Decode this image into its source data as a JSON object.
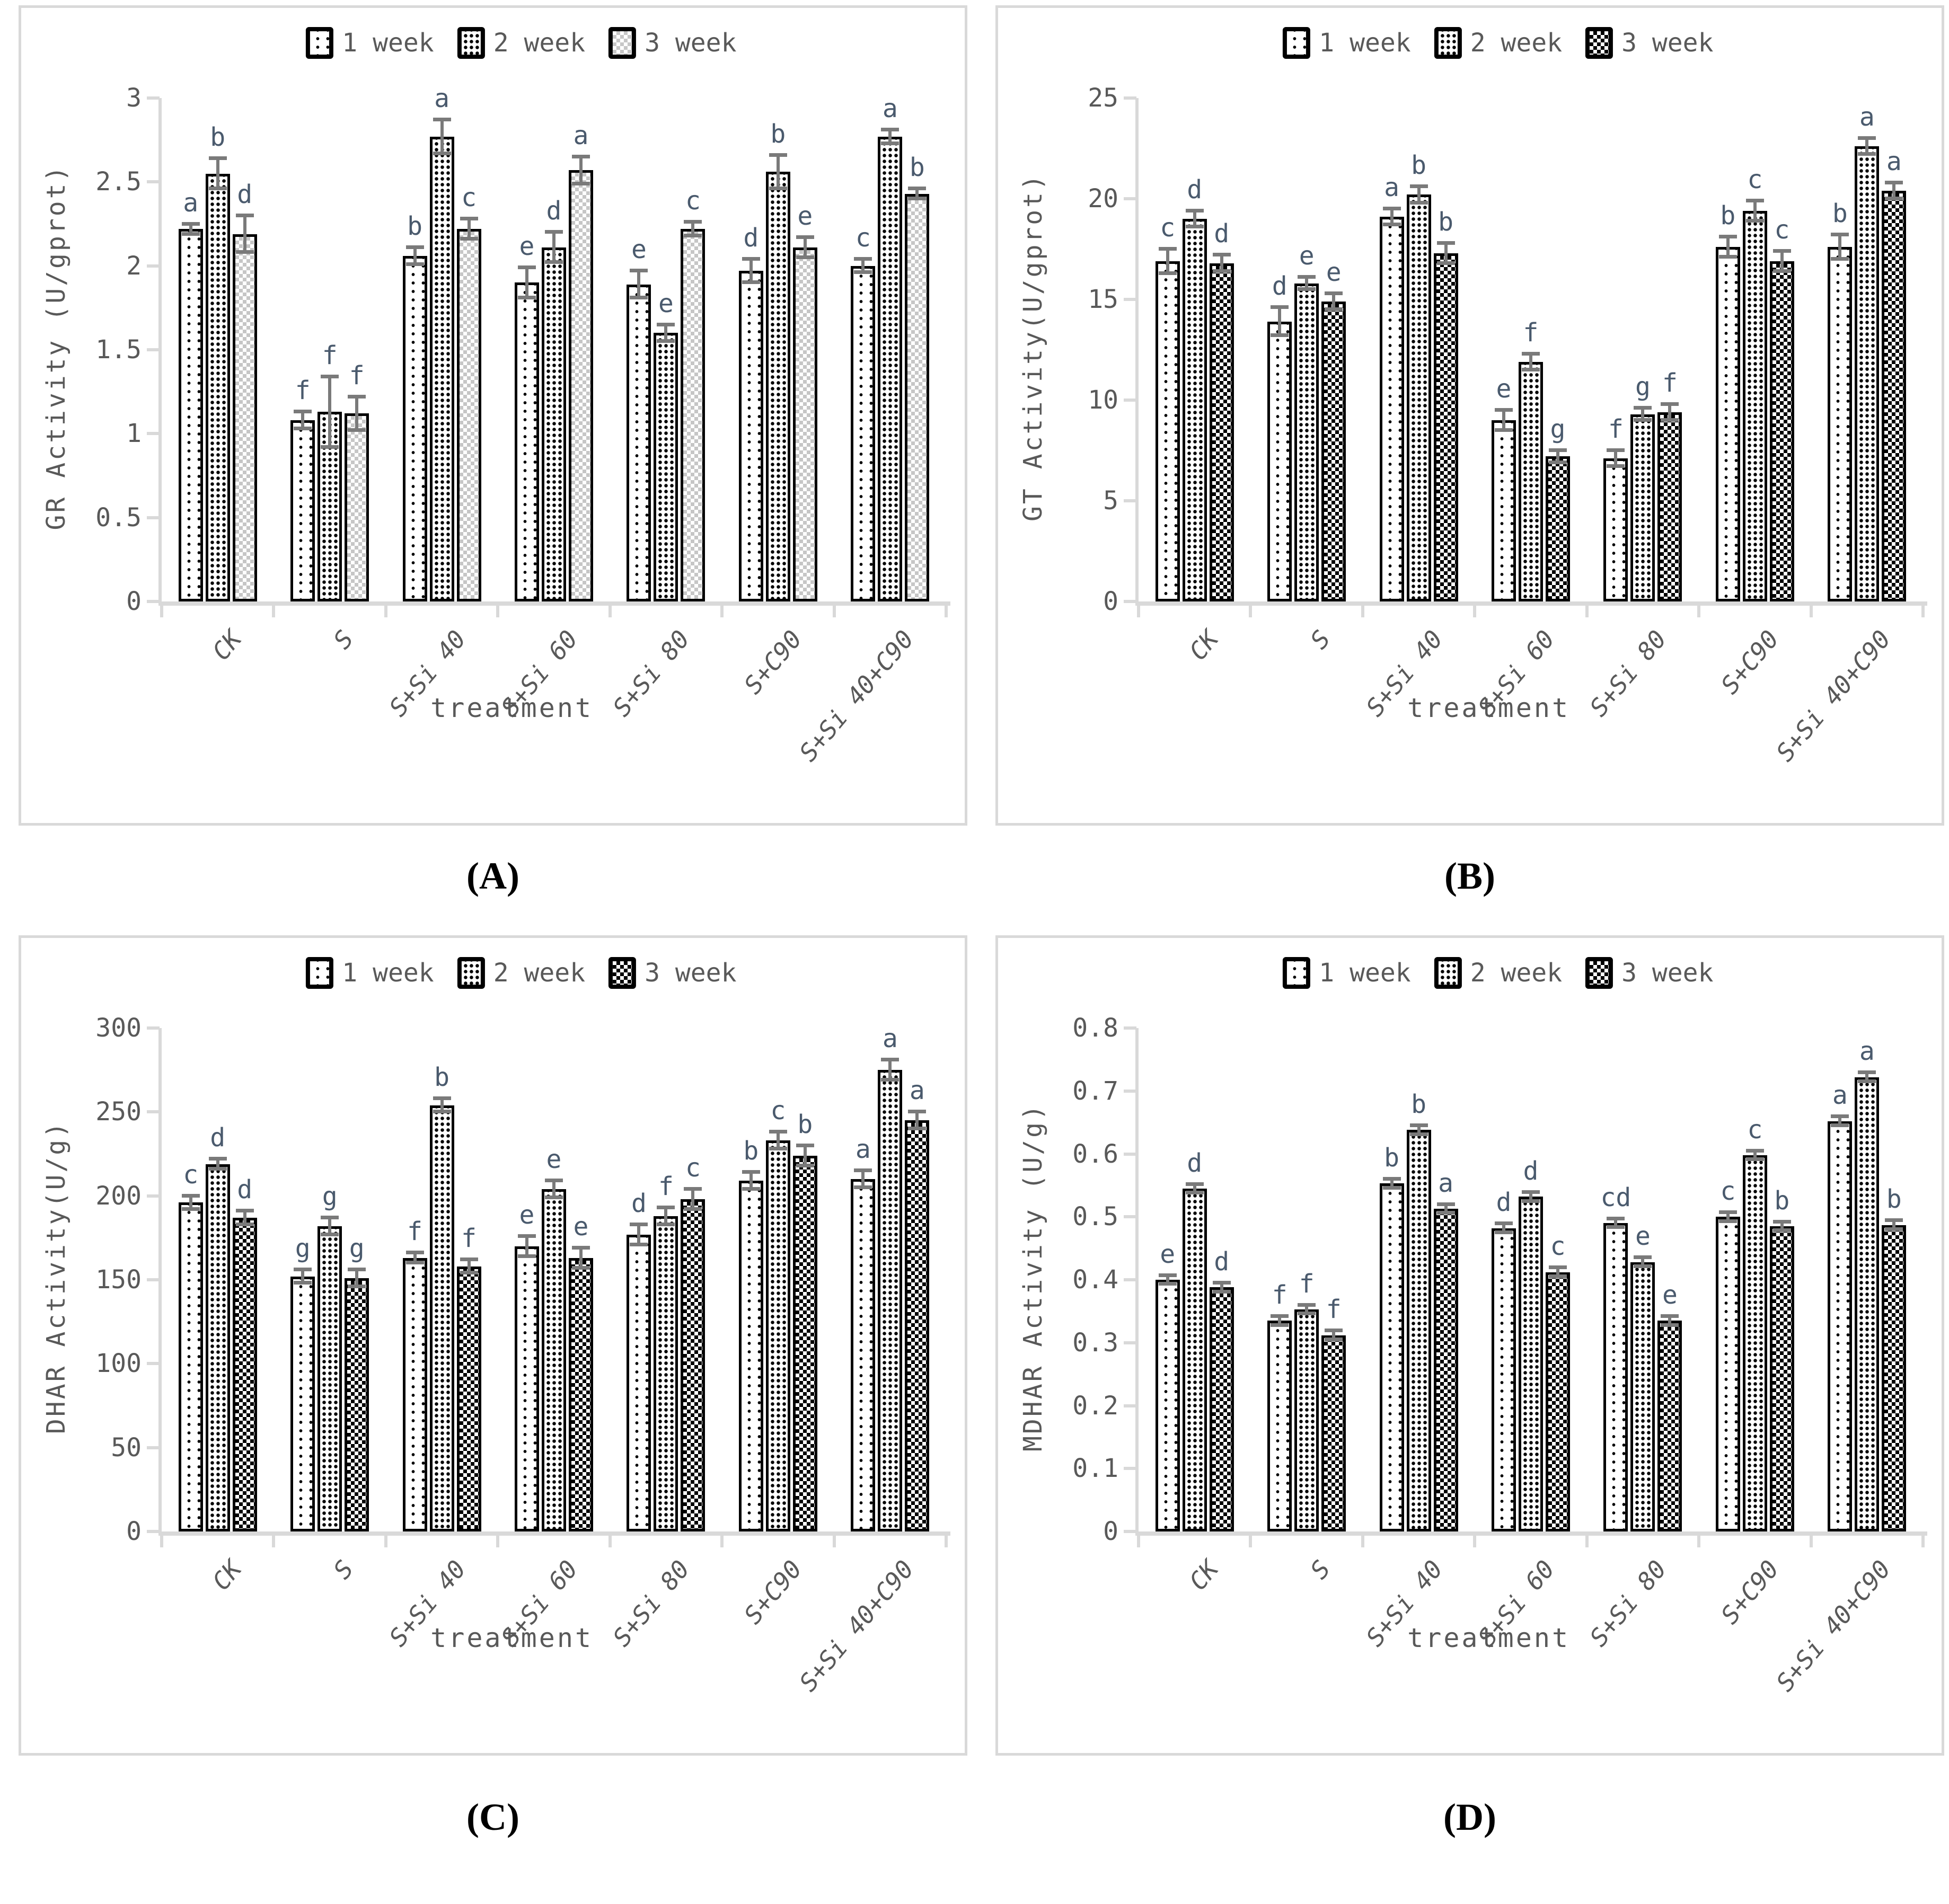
{
  "figure": {
    "x_title": "treatment",
    "categories": [
      "CK",
      "S",
      "S+Si 40",
      "S+Si 60",
      "S+Si 80",
      "S+C90",
      "S+Si 40+C90"
    ],
    "legend": {
      "position": "top",
      "items": [
        {
          "label": "1 week",
          "pattern": "dots-sparse"
        },
        {
          "label": "2 week",
          "pattern": "dots-dense"
        },
        {
          "label": "3 week",
          "pattern": "checker"
        }
      ]
    },
    "colors": {
      "axis_line": "#d9d9d9",
      "axis_text": "#595959",
      "sig_letter": "#4a5a6d",
      "error_bar": "#7a7a7a",
      "bar_border": "#000000",
      "checker_light": "#c6c6c6",
      "checker_dark": "#000000"
    }
  },
  "chart_data": [
    {
      "panel": "A",
      "panel_label": "(A)",
      "type": "bar",
      "ylabel": "GR Activity (U/gprot)",
      "xlabel": "treatment",
      "ylim": [
        0,
        3
      ],
      "ymax": 3,
      "grid": false,
      "ytick_values": [
        0,
        0.5,
        1,
        1.5,
        2,
        2.5,
        3
      ],
      "ytick_labels": [
        "0",
        "0.5",
        "1",
        "1.5",
        "2",
        "2.5",
        "3"
      ],
      "checker_style": "light",
      "categories": [
        "CK",
        "S",
        "S+Si 40",
        "S+Si 60",
        "S+Si 80",
        "S+C90",
        "S+Si 40+C90"
      ],
      "series": [
        {
          "name": "1 week",
          "values": [
            2.22,
            1.08,
            2.06,
            1.9,
            1.89,
            1.97,
            2.0
          ],
          "errors": [
            0.03,
            0.05,
            0.05,
            0.09,
            0.08,
            0.07,
            0.04
          ],
          "letters": [
            "a",
            "f",
            "b",
            "e",
            "e",
            "d",
            "c"
          ]
        },
        {
          "name": "2 week",
          "values": [
            2.55,
            1.13,
            2.77,
            2.11,
            1.6,
            2.56,
            2.77
          ],
          "errors": [
            0.09,
            0.21,
            0.1,
            0.09,
            0.05,
            0.1,
            0.04
          ],
          "letters": [
            "b",
            "f",
            "a",
            "d",
            "e",
            "b",
            "a"
          ]
        },
        {
          "name": "3 week",
          "values": [
            2.19,
            1.12,
            2.22,
            2.57,
            2.22,
            2.11,
            2.43
          ],
          "errors": [
            0.11,
            0.1,
            0.06,
            0.08,
            0.04,
            0.06,
            0.03
          ],
          "letters": [
            "d",
            "f",
            "c",
            "a",
            "c",
            "e",
            "b"
          ]
        }
      ]
    },
    {
      "panel": "B",
      "panel_label": "(B)",
      "type": "bar",
      "ylabel": "GT Activity(U/gprot)",
      "xlabel": "treatment",
      "ylim": [
        0,
        25
      ],
      "ymax": 25,
      "grid": false,
      "ytick_values": [
        0,
        5,
        10,
        15,
        20,
        25
      ],
      "ytick_labels": [
        "0",
        "5",
        "10",
        "15",
        "20",
        "25"
      ],
      "checker_style": "dark",
      "categories": [
        "CK",
        "S",
        "S+Si 40",
        "S+Si 60",
        "S+Si 80",
        "S+C90",
        "S+Si 40+C90"
      ],
      "series": [
        {
          "name": "1 week",
          "values": [
            16.9,
            13.9,
            19.1,
            9.0,
            7.1,
            17.6,
            17.6
          ],
          "errors": [
            0.6,
            0.7,
            0.4,
            0.5,
            0.4,
            0.5,
            0.6
          ],
          "letters": [
            "c",
            "d",
            "a",
            "e",
            "f",
            "b",
            "b"
          ]
        },
        {
          "name": "2 week",
          "values": [
            19.0,
            15.8,
            20.2,
            11.9,
            9.3,
            19.4,
            22.6
          ],
          "errors": [
            0.4,
            0.3,
            0.4,
            0.4,
            0.3,
            0.5,
            0.4
          ],
          "letters": [
            "d",
            "e",
            "b",
            "f",
            "g",
            "c",
            "a"
          ]
        },
        {
          "name": "3 week",
          "values": [
            16.8,
            14.9,
            17.3,
            7.2,
            9.4,
            16.9,
            20.4
          ],
          "errors": [
            0.4,
            0.4,
            0.5,
            0.3,
            0.4,
            0.5,
            0.4
          ],
          "letters": [
            "d",
            "e",
            "b",
            "g",
            "f",
            "c",
            "a"
          ]
        }
      ]
    },
    {
      "panel": "C",
      "panel_label": "(C)",
      "type": "bar",
      "ylabel": "DHAR Activity(U/g)",
      "xlabel": "treatment",
      "ylim": [
        0,
        300
      ],
      "ymax": 300,
      "grid": false,
      "ytick_values": [
        0,
        50,
        100,
        150,
        200,
        250,
        300
      ],
      "ytick_labels": [
        "0",
        "50",
        "100",
        "150",
        "200",
        "250",
        "300"
      ],
      "checker_style": "dark",
      "categories": [
        "CK",
        "S",
        "S+Si 40",
        "S+Si 60",
        "S+Si 80",
        "S+C90",
        "S+Si 40+C90"
      ],
      "series": [
        {
          "name": "1 week",
          "values": [
            196,
            152,
            163,
            170,
            177,
            209,
            210
          ],
          "errors": [
            4,
            4,
            3,
            6,
            6,
            5,
            5
          ],
          "letters": [
            "c",
            "g",
            "f",
            "e",
            "d",
            "b",
            "a"
          ]
        },
        {
          "name": "2 week",
          "values": [
            219,
            182,
            254,
            204,
            188,
            233,
            275
          ],
          "errors": [
            3,
            5,
            4,
            5,
            5,
            5,
            6
          ],
          "letters": [
            "d",
            "g",
            "b",
            "e",
            "f",
            "c",
            "a"
          ]
        },
        {
          "name": "3 week",
          "values": [
            187,
            151,
            158,
            163,
            198,
            224,
            245
          ],
          "errors": [
            4,
            5,
            4,
            6,
            6,
            6,
            5
          ],
          "letters": [
            "d",
            "g",
            "f",
            "e",
            "c",
            "b",
            "a"
          ]
        }
      ]
    },
    {
      "panel": "D",
      "panel_label": "(D)",
      "type": "bar",
      "ylabel": "MDHAR Activity (U/g)",
      "xlabel": "treatment",
      "ylim": [
        0,
        0.8
      ],
      "ymax": 0.8,
      "grid": false,
      "ytick_values": [
        0,
        0.1,
        0.2,
        0.3,
        0.4,
        0.5,
        0.6,
        0.7,
        0.8
      ],
      "ytick_labels": [
        "0",
        "0.1",
        "0.2",
        "0.3",
        "0.4",
        "0.5",
        "0.6",
        "0.7",
        "0.8"
      ],
      "checker_style": "dark",
      "categories": [
        "CK",
        "S",
        "S+Si 40",
        "S+Si 60",
        "S+Si 80",
        "S+C90",
        "S+Si 40+C90"
      ],
      "series": [
        {
          "name": "1 week",
          "values": [
            0.4,
            0.335,
            0.553,
            0.482,
            0.49,
            0.5,
            0.652
          ],
          "errors": [
            0.007,
            0.007,
            0.007,
            0.007,
            0.007,
            0.007,
            0.007
          ],
          "letters": [
            "e",
            "f",
            "b",
            "d",
            "cd",
            "c",
            "a"
          ]
        },
        {
          "name": "2 week",
          "values": [
            0.545,
            0.353,
            0.638,
            0.532,
            0.428,
            0.598,
            0.722
          ],
          "errors": [
            0.007,
            0.007,
            0.007,
            0.007,
            0.007,
            0.007,
            0.007
          ],
          "letters": [
            "d",
            "f",
            "b",
            "d",
            "e",
            "c",
            "a"
          ]
        },
        {
          "name": "3 week",
          "values": [
            0.388,
            0.312,
            0.513,
            0.412,
            0.335,
            0.485,
            0.487
          ],
          "errors": [
            0.007,
            0.007,
            0.007,
            0.007,
            0.007,
            0.007,
            0.007
          ],
          "letters": [
            "d",
            "f",
            "a",
            "c",
            "e",
            "b",
            "b"
          ]
        }
      ]
    }
  ]
}
